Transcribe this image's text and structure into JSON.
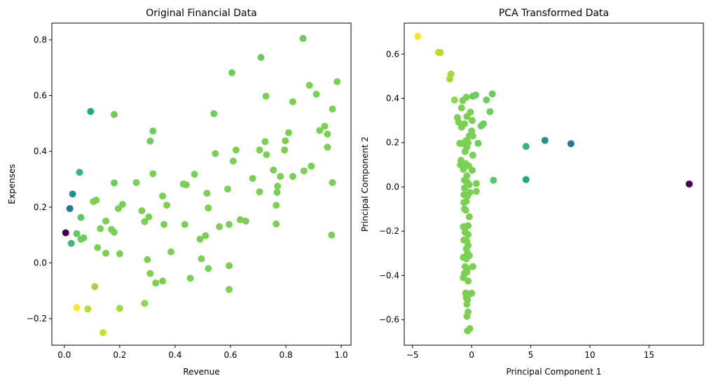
{
  "chart_data": [
    {
      "type": "scatter",
      "title": "Original Financial Data",
      "xlabel": "Revenue",
      "ylabel": "Expenses",
      "xlim": [
        -0.045,
        1.035
      ],
      "ylim": [
        -0.295,
        0.86
      ],
      "xticks": [
        0.0,
        0.2,
        0.4,
        0.6,
        0.8,
        1.0
      ],
      "xtick_labels": [
        "0.0",
        "0.2",
        "0.4",
        "0.6",
        "0.8",
        "1.0"
      ],
      "yticks": [
        -0.2,
        0.0,
        0.2,
        0.4,
        0.6,
        0.8
      ],
      "ytick_labels": [
        "−0.2",
        "0.0",
        "0.2",
        "0.4",
        "0.6",
        "0.8"
      ],
      "grid": false,
      "points": [
        {
          "x": 0.005,
          "y": 0.108,
          "color": "#440154"
        },
        {
          "x": 0.02,
          "y": 0.195,
          "color": "#2a788e"
        },
        {
          "x": 0.03,
          "y": 0.247,
          "color": "#21918c"
        },
        {
          "x": 0.025,
          "y": 0.07,
          "color": "#3bb77a"
        },
        {
          "x": 0.045,
          "y": 0.105,
          "color": "#5ec962"
        },
        {
          "x": 0.055,
          "y": 0.325,
          "color": "#35b779"
        },
        {
          "x": 0.06,
          "y": 0.163,
          "color": "#5ec962"
        },
        {
          "x": 0.06,
          "y": 0.085,
          "color": "#6ccd5a"
        },
        {
          "x": 0.07,
          "y": 0.09,
          "color": "#6ccd5a"
        },
        {
          "x": 0.095,
          "y": 0.543,
          "color": "#22a884"
        },
        {
          "x": 0.105,
          "y": 0.22,
          "color": "#7ad151"
        },
        {
          "x": 0.115,
          "y": 0.225,
          "color": "#7ad151"
        },
        {
          "x": 0.12,
          "y": 0.055,
          "color": "#7ad151"
        },
        {
          "x": 0.13,
          "y": 0.123,
          "color": "#7ad151"
        },
        {
          "x": 0.15,
          "y": 0.15,
          "color": "#7ad151"
        },
        {
          "x": 0.15,
          "y": 0.035,
          "color": "#7ad151"
        },
        {
          "x": 0.17,
          "y": 0.12,
          "color": "#7ad151"
        },
        {
          "x": 0.18,
          "y": 0.11,
          "color": "#7ad151"
        },
        {
          "x": 0.18,
          "y": 0.287,
          "color": "#6ccd5a"
        },
        {
          "x": 0.18,
          "y": 0.532,
          "color": "#6ccd5a"
        },
        {
          "x": 0.195,
          "y": 0.195,
          "color": "#7ad151"
        },
        {
          "x": 0.2,
          "y": 0.033,
          "color": "#7ad151"
        },
        {
          "x": 0.21,
          "y": 0.21,
          "color": "#7ad151"
        },
        {
          "x": 0.26,
          "y": 0.288,
          "color": "#7ad151"
        },
        {
          "x": 0.28,
          "y": 0.187,
          "color": "#7ad151"
        },
        {
          "x": 0.29,
          "y": 0.148,
          "color": "#7ad151"
        },
        {
          "x": 0.3,
          "y": 0.012,
          "color": "#7ad151"
        },
        {
          "x": 0.305,
          "y": 0.165,
          "color": "#7ad151"
        },
        {
          "x": 0.31,
          "y": 0.437,
          "color": "#6ccd5a"
        },
        {
          "x": 0.31,
          "y": -0.038,
          "color": "#7ad151"
        },
        {
          "x": 0.32,
          "y": 0.473,
          "color": "#6ccd5a"
        },
        {
          "x": 0.32,
          "y": 0.32,
          "color": "#7ad151"
        },
        {
          "x": 0.33,
          "y": -0.072,
          "color": "#7ad151"
        },
        {
          "x": 0.355,
          "y": 0.24,
          "color": "#7ad151"
        },
        {
          "x": 0.355,
          "y": -0.065,
          "color": "#7ad151"
        },
        {
          "x": 0.36,
          "y": 0.138,
          "color": "#7ad151"
        },
        {
          "x": 0.37,
          "y": 0.207,
          "color": "#7ad151"
        },
        {
          "x": 0.385,
          "y": 0.04,
          "color": "#7ad151"
        },
        {
          "x": 0.43,
          "y": 0.283,
          "color": "#7ad151"
        },
        {
          "x": 0.435,
          "y": 0.138,
          "color": "#7ad151"
        },
        {
          "x": 0.44,
          "y": 0.28,
          "color": "#7ad151"
        },
        {
          "x": 0.455,
          "y": -0.055,
          "color": "#7ad151"
        },
        {
          "x": 0.47,
          "y": 0.318,
          "color": "#7ad151"
        },
        {
          "x": 0.49,
          "y": 0.085,
          "color": "#7ad151"
        },
        {
          "x": 0.495,
          "y": 0.015,
          "color": "#7ad151"
        },
        {
          "x": 0.51,
          "y": 0.098,
          "color": "#7ad151"
        },
        {
          "x": 0.515,
          "y": 0.25,
          "color": "#7ad151"
        },
        {
          "x": 0.52,
          "y": 0.197,
          "color": "#7ad151"
        },
        {
          "x": 0.52,
          "y": -0.02,
          "color": "#7ad151"
        },
        {
          "x": 0.54,
          "y": 0.535,
          "color": "#6ccd5a"
        },
        {
          "x": 0.545,
          "y": 0.392,
          "color": "#7ad151"
        },
        {
          "x": 0.56,
          "y": 0.13,
          "color": "#7ad151"
        },
        {
          "x": 0.59,
          "y": 0.265,
          "color": "#7ad151"
        },
        {
          "x": 0.595,
          "y": 0.138,
          "color": "#7ad151"
        },
        {
          "x": 0.595,
          "y": -0.01,
          "color": "#7ad151"
        },
        {
          "x": 0.595,
          "y": -0.095,
          "color": "#7ad151"
        },
        {
          "x": 0.605,
          "y": 0.682,
          "color": "#6ccd5a"
        },
        {
          "x": 0.61,
          "y": 0.365,
          "color": "#7ad151"
        },
        {
          "x": 0.62,
          "y": 0.405,
          "color": "#7ad151"
        },
        {
          "x": 0.635,
          "y": 0.155,
          "color": "#7ad151"
        },
        {
          "x": 0.655,
          "y": 0.15,
          "color": "#7ad151"
        },
        {
          "x": 0.68,
          "y": 0.303,
          "color": "#7ad151"
        },
        {
          "x": 0.705,
          "y": 0.255,
          "color": "#7ad151"
        },
        {
          "x": 0.705,
          "y": 0.405,
          "color": "#7ad151"
        },
        {
          "x": 0.71,
          "y": 0.737,
          "color": "#6ccd5a"
        },
        {
          "x": 0.725,
          "y": 0.435,
          "color": "#7ad151"
        },
        {
          "x": 0.728,
          "y": 0.598,
          "color": "#7ad151"
        },
        {
          "x": 0.73,
          "y": 0.388,
          "color": "#7ad151"
        },
        {
          "x": 0.755,
          "y": 0.333,
          "color": "#7ad151"
        },
        {
          "x": 0.765,
          "y": 0.207,
          "color": "#7ad151"
        },
        {
          "x": 0.765,
          "y": 0.14,
          "color": "#7ad151"
        },
        {
          "x": 0.768,
          "y": 0.253,
          "color": "#7ad151"
        },
        {
          "x": 0.77,
          "y": 0.275,
          "color": "#7ad151"
        },
        {
          "x": 0.78,
          "y": 0.31,
          "color": "#7ad151"
        },
        {
          "x": 0.795,
          "y": 0.405,
          "color": "#7ad151"
        },
        {
          "x": 0.798,
          "y": 0.438,
          "color": "#7ad151"
        },
        {
          "x": 0.81,
          "y": 0.467,
          "color": "#7ad151"
        },
        {
          "x": 0.825,
          "y": 0.578,
          "color": "#7ad151"
        },
        {
          "x": 0.825,
          "y": 0.31,
          "color": "#7ad151"
        },
        {
          "x": 0.862,
          "y": 0.805,
          "color": "#6ccd5a"
        },
        {
          "x": 0.865,
          "y": 0.33,
          "color": "#7ad151"
        },
        {
          "x": 0.885,
          "y": 0.637,
          "color": "#7ad151"
        },
        {
          "x": 0.892,
          "y": 0.347,
          "color": "#7ad151"
        },
        {
          "x": 0.91,
          "y": 0.605,
          "color": "#7ad151"
        },
        {
          "x": 0.922,
          "y": 0.475,
          "color": "#7ad151"
        },
        {
          "x": 0.94,
          "y": 0.49,
          "color": "#7ad151"
        },
        {
          "x": 0.95,
          "y": 0.462,
          "color": "#7ad151"
        },
        {
          "x": 0.95,
          "y": 0.415,
          "color": "#7ad151"
        },
        {
          "x": 0.965,
          "y": 0.1,
          "color": "#7ad151"
        },
        {
          "x": 0.968,
          "y": 0.288,
          "color": "#7ad151"
        },
        {
          "x": 0.968,
          "y": 0.552,
          "color": "#7ad151"
        },
        {
          "x": 0.985,
          "y": 0.65,
          "color": "#7ad151"
        },
        {
          "x": 0.045,
          "y": -0.16,
          "color": "#fde725"
        },
        {
          "x": 0.085,
          "y": -0.165,
          "color": "#b5de2b"
        },
        {
          "x": 0.11,
          "y": -0.085,
          "color": "#a0da39"
        },
        {
          "x": 0.14,
          "y": -0.25,
          "color": "#c8e020"
        },
        {
          "x": 0.2,
          "y": -0.163,
          "color": "#a0da39"
        },
        {
          "x": 0.29,
          "y": -0.145,
          "color": "#8fd744"
        }
      ]
    },
    {
      "type": "scatter",
      "title": "PCA Transformed Data",
      "xlabel": "Principal Component 1",
      "ylabel": "Principal Component 2",
      "xlim": [
        -5.7,
        19.6
      ],
      "ylim": [
        -0.715,
        0.74
      ],
      "xticks": [
        -5,
        0,
        5,
        10,
        15
      ],
      "xtick_labels": [
        "−5",
        "0",
        "5",
        "10",
        "15"
      ],
      "yticks": [
        -0.6,
        -0.4,
        -0.2,
        0.0,
        0.2,
        0.4,
        0.6
      ],
      "ytick_labels": [
        "−0.6",
        "−0.4",
        "−0.2",
        "0.0",
        "0.2",
        "0.4",
        "0.6"
      ],
      "grid": false,
      "points": [
        {
          "x": -4.55,
          "y": 0.68,
          "color": "#fde725"
        },
        {
          "x": -2.8,
          "y": 0.608,
          "color": "#c8e020"
        },
        {
          "x": -2.65,
          "y": 0.607,
          "color": "#b5de2b"
        },
        {
          "x": -1.75,
          "y": 0.51,
          "color": "#a0da39"
        },
        {
          "x": -1.85,
          "y": 0.488,
          "color": "#a0da39"
        },
        {
          "x": -1.45,
          "y": 0.393,
          "color": "#8fd744"
        },
        {
          "x": -0.75,
          "y": 0.39,
          "color": "#7ad151"
        },
        {
          "x": -0.45,
          "y": 0.405,
          "color": "#7ad151"
        },
        {
          "x": 0.1,
          "y": 0.41,
          "color": "#6ccd5a"
        },
        {
          "x": 0.35,
          "y": 0.415,
          "color": "#6ccd5a"
        },
        {
          "x": 1.75,
          "y": 0.42,
          "color": "#6ccd5a"
        },
        {
          "x": 1.25,
          "y": 0.393,
          "color": "#6ccd5a"
        },
        {
          "x": -0.85,
          "y": 0.357,
          "color": "#7ad151"
        },
        {
          "x": -0.1,
          "y": 0.338,
          "color": "#7ad151"
        },
        {
          "x": 1.55,
          "y": 0.34,
          "color": "#6ccd5a"
        },
        {
          "x": -1.2,
          "y": 0.313,
          "color": "#7ad151"
        },
        {
          "x": -0.4,
          "y": 0.318,
          "color": "#7ad151"
        },
        {
          "x": -1.1,
          "y": 0.292,
          "color": "#7ad151"
        },
        {
          "x": -0.6,
          "y": 0.285,
          "color": "#7ad151"
        },
        {
          "x": 0.05,
          "y": 0.3,
          "color": "#7ad151"
        },
        {
          "x": -0.85,
          "y": 0.27,
          "color": "#7ad151"
        },
        {
          "x": 0.8,
          "y": 0.275,
          "color": "#6ccd5a"
        },
        {
          "x": 1.0,
          "y": 0.285,
          "color": "#6ccd5a"
        },
        {
          "x": 0.0,
          "y": 0.253,
          "color": "#7ad151"
        },
        {
          "x": -0.2,
          "y": 0.23,
          "color": "#7ad151"
        },
        {
          "x": 0.1,
          "y": 0.23,
          "color": "#7ad151"
        },
        {
          "x": -0.5,
          "y": 0.208,
          "color": "#7ad151"
        },
        {
          "x": -0.3,
          "y": 0.2,
          "color": "#7ad151"
        },
        {
          "x": -1.0,
          "y": 0.197,
          "color": "#7ad151"
        },
        {
          "x": -0.7,
          "y": 0.195,
          "color": "#7ad151"
        },
        {
          "x": 0.55,
          "y": 0.197,
          "color": "#6ccd5a"
        },
        {
          "x": -0.4,
          "y": 0.18,
          "color": "#7ad151"
        },
        {
          "x": -0.55,
          "y": 0.16,
          "color": "#7ad151"
        },
        {
          "x": 0.1,
          "y": 0.143,
          "color": "#7ad151"
        },
        {
          "x": -0.9,
          "y": 0.12,
          "color": "#7ad151"
        },
        {
          "x": -0.95,
          "y": 0.1,
          "color": "#7ad151"
        },
        {
          "x": -0.5,
          "y": 0.105,
          "color": "#7ad151"
        },
        {
          "x": -0.25,
          "y": 0.095,
          "color": "#7ad151"
        },
        {
          "x": -0.7,
          "y": 0.08,
          "color": "#7ad151"
        },
        {
          "x": 0.05,
          "y": 0.075,
          "color": "#7ad151"
        },
        {
          "x": -0.4,
          "y": 0.05,
          "color": "#7ad151"
        },
        {
          "x": -0.6,
          "y": 0.03,
          "color": "#7ad151"
        },
        {
          "x": -0.35,
          "y": 0.02,
          "color": "#7ad151"
        },
        {
          "x": -0.2,
          "y": 0.01,
          "color": "#7ad151"
        },
        {
          "x": 0.4,
          "y": 0.015,
          "color": "#7ad151"
        },
        {
          "x": -0.6,
          "y": -0.005,
          "color": "#7ad151"
        },
        {
          "x": 0.4,
          "y": -0.02,
          "color": "#7ad151"
        },
        {
          "x": -0.15,
          "y": -0.025,
          "color": "#7ad151"
        },
        {
          "x": -0.65,
          "y": -0.035,
          "color": "#7ad151"
        },
        {
          "x": -0.35,
          "y": -0.04,
          "color": "#7ad151"
        },
        {
          "x": -0.65,
          "y": -0.07,
          "color": "#7ad151"
        },
        {
          "x": -0.45,
          "y": -0.065,
          "color": "#7ad151"
        },
        {
          "x": -0.6,
          "y": -0.1,
          "color": "#7ad151"
        },
        {
          "x": -0.5,
          "y": -0.105,
          "color": "#7ad151"
        },
        {
          "x": -0.2,
          "y": -0.135,
          "color": "#7ad151"
        },
        {
          "x": -0.7,
          "y": -0.18,
          "color": "#7ad151"
        },
        {
          "x": -0.5,
          "y": -0.18,
          "color": "#7ad151"
        },
        {
          "x": -0.3,
          "y": -0.175,
          "color": "#7ad151"
        },
        {
          "x": -0.55,
          "y": -0.205,
          "color": "#7ad151"
        },
        {
          "x": -0.3,
          "y": -0.215,
          "color": "#7ad151"
        },
        {
          "x": -0.4,
          "y": -0.245,
          "color": "#7ad151"
        },
        {
          "x": -0.65,
          "y": -0.24,
          "color": "#7ad151"
        },
        {
          "x": -0.3,
          "y": -0.265,
          "color": "#7ad151"
        },
        {
          "x": -0.45,
          "y": -0.28,
          "color": "#7ad151"
        },
        {
          "x": -0.35,
          "y": -0.3,
          "color": "#7ad151"
        },
        {
          "x": -0.7,
          "y": -0.318,
          "color": "#7ad151"
        },
        {
          "x": -0.45,
          "y": -0.325,
          "color": "#7ad151"
        },
        {
          "x": -0.2,
          "y": -0.31,
          "color": "#7ad151"
        },
        {
          "x": -0.55,
          "y": -0.36,
          "color": "#7ad151"
        },
        {
          "x": -0.35,
          "y": -0.37,
          "color": "#7ad151"
        },
        {
          "x": 0.1,
          "y": -0.36,
          "color": "#7ad151"
        },
        {
          "x": -0.6,
          "y": -0.39,
          "color": "#7ad151"
        },
        {
          "x": -0.4,
          "y": -0.385,
          "color": "#7ad151"
        },
        {
          "x": -0.7,
          "y": -0.41,
          "color": "#7ad151"
        },
        {
          "x": -0.3,
          "y": -0.425,
          "color": "#7ad151"
        },
        {
          "x": -0.5,
          "y": -0.48,
          "color": "#7ad151"
        },
        {
          "x": -0.2,
          "y": -0.485,
          "color": "#7ad151"
        },
        {
          "x": 0.0,
          "y": -0.48,
          "color": "#7ad151"
        },
        {
          "x": -0.45,
          "y": -0.5,
          "color": "#7ad151"
        },
        {
          "x": -0.35,
          "y": -0.51,
          "color": "#7ad151"
        },
        {
          "x": -0.4,
          "y": -0.53,
          "color": "#7ad151"
        },
        {
          "x": -0.3,
          "y": -0.565,
          "color": "#7ad151"
        },
        {
          "x": -0.4,
          "y": -0.585,
          "color": "#7ad151"
        },
        {
          "x": -0.15,
          "y": -0.64,
          "color": "#7ad151"
        },
        {
          "x": -0.35,
          "y": -0.65,
          "color": "#7ad151"
        },
        {
          "x": 1.85,
          "y": 0.03,
          "color": "#5ec962"
        },
        {
          "x": 4.6,
          "y": 0.183,
          "color": "#35b779"
        },
        {
          "x": 4.6,
          "y": 0.033,
          "color": "#22a884"
        },
        {
          "x": 6.2,
          "y": 0.21,
          "color": "#21918c"
        },
        {
          "x": 8.4,
          "y": 0.195,
          "color": "#2a788e"
        },
        {
          "x": 18.4,
          "y": 0.013,
          "color": "#440154"
        }
      ]
    }
  ]
}
